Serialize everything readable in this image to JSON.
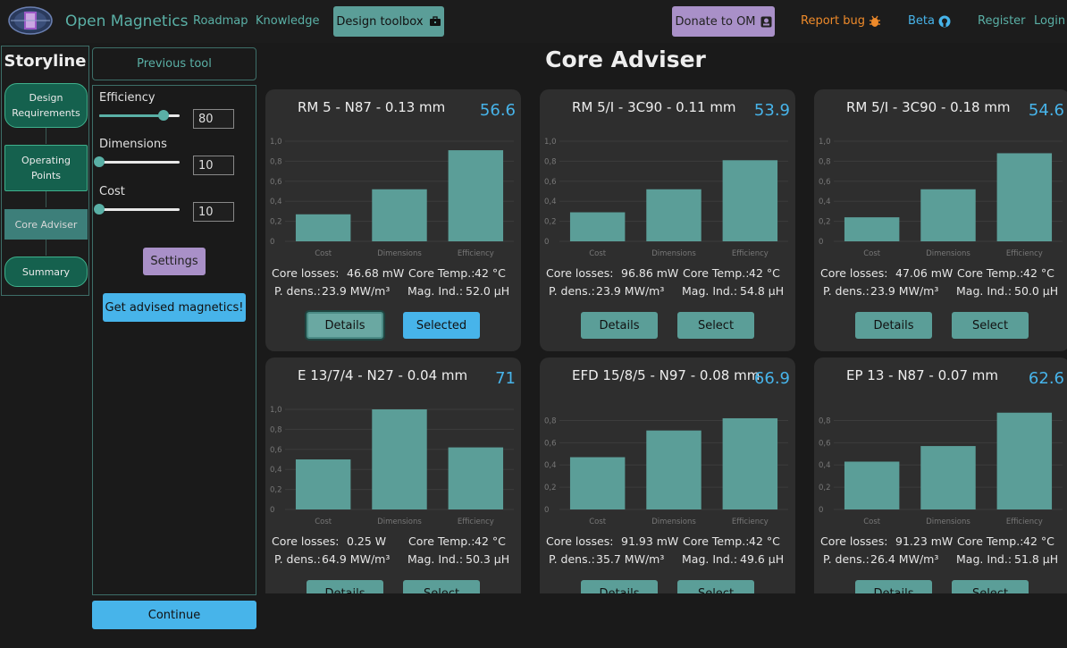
{
  "header": {
    "brand": "Open Magnetics",
    "nav": [
      "Roadmap",
      "Knowledge"
    ],
    "design_toolbox": "Design toolbox",
    "donate": "Donate to OM",
    "report_bug": "Report bug",
    "beta": "Beta",
    "register": "Register",
    "login": "Login"
  },
  "storyline": {
    "title": "Storyline",
    "steps": [
      "Design Requirements",
      "Operating Points",
      "Core Adviser",
      "Summary"
    ],
    "active": "Core Adviser"
  },
  "controls": {
    "previous_tool": "Previous tool",
    "sliders": [
      {
        "label": "Efficiency",
        "value": "80",
        "level": 0.8
      },
      {
        "label": "Dimensions",
        "value": "10",
        "level": 0.0
      },
      {
        "label": "Cost",
        "value": "10",
        "level": 0.0
      }
    ],
    "settings": "Settings",
    "get_advised": "Get advised magnetics!",
    "continue": "Continue"
  },
  "main": {
    "title": "Core Adviser",
    "colors": {
      "bar": "#5b9e98",
      "score": "#47b4ea",
      "card": "#2e2e2e"
    },
    "labels": {
      "core_losses": "Core losses:",
      "core_temp": "Core Temp.:",
      "p_dens": "P. dens.:",
      "mag_ind": "Mag. Ind.:",
      "details": "Details",
      "select": "Select",
      "selected": "Selected"
    },
    "cards": [
      {
        "title": "RM 5 - N87 - 0.13 mm",
        "score": "56.6",
        "core_losses": "46.68 mW",
        "core_temp": "42 °C",
        "p_dens": "23.9 MW/m³",
        "mag_ind": "52.0 µH",
        "state": "selected"
      },
      {
        "title": "RM 5/I - 3C90 - 0.11 mm",
        "score": "53.9",
        "core_losses": "96.86 mW",
        "core_temp": "42 °C",
        "p_dens": "23.9 MW/m³",
        "mag_ind": "54.8 µH",
        "state": "select"
      },
      {
        "title": "RM 5/I - 3C90 - 0.18 mm",
        "score": "54.6",
        "core_losses": "47.06 mW",
        "core_temp": "42 °C",
        "p_dens": "23.9 MW/m³",
        "mag_ind": "50.0 µH",
        "state": "select"
      },
      {
        "title": "E 13/7/4 - N27 - 0.04 mm",
        "score": "71",
        "core_losses": "0.25 W",
        "core_temp": "42 °C",
        "p_dens": "64.9 MW/m³",
        "mag_ind": "50.3 µH",
        "state": "select"
      },
      {
        "title": "EFD 15/8/5 - N97 - 0.08 mm",
        "score": "66.9",
        "core_losses": "91.93 mW",
        "core_temp": "42 °C",
        "p_dens": "35.7 MW/m³",
        "mag_ind": "49.6 µH",
        "state": "select"
      },
      {
        "title": "EP 13 - N87 - 0.07 mm",
        "score": "62.6",
        "core_losses": "91.23 mW",
        "core_temp": "42 °C",
        "p_dens": "26.4 MW/m³",
        "mag_ind": "51.8 µH",
        "state": "select"
      }
    ]
  },
  "chart_data": [
    {
      "type": "bar",
      "categories": [
        "Cost",
        "Dimensions",
        "Efficiency"
      ],
      "values": [
        0.27,
        0.52,
        0.91
      ],
      "ylim": [
        0,
        1.0
      ],
      "yticks": [
        "1,0",
        "0,8",
        "0,6",
        "0,4",
        "0,2",
        "0"
      ]
    },
    {
      "type": "bar",
      "categories": [
        "Cost",
        "Dimensions",
        "Efficiency"
      ],
      "values": [
        0.29,
        0.52,
        0.81
      ],
      "ylim": [
        0,
        1.0
      ],
      "yticks": [
        "1,0",
        "0,8",
        "0,6",
        "0,4",
        "0,2",
        "0"
      ]
    },
    {
      "type": "bar",
      "categories": [
        "Cost",
        "Dimensions",
        "Efficiency"
      ],
      "values": [
        0.24,
        0.52,
        0.88
      ],
      "ylim": [
        0,
        1.0
      ],
      "yticks": [
        "1,0",
        "0,8",
        "0,6",
        "0,4",
        "0,2",
        "0"
      ]
    },
    {
      "type": "bar",
      "categories": [
        "Cost",
        "Dimensions",
        "Efficiency"
      ],
      "values": [
        0.5,
        1.0,
        0.62
      ],
      "ylim": [
        0,
        1.0
      ],
      "yticks": [
        "1,0",
        "0,8",
        "0,6",
        "0,4",
        "0,2",
        "0"
      ]
    },
    {
      "type": "bar",
      "categories": [
        "Cost",
        "Dimensions",
        "Efficiency"
      ],
      "values": [
        0.47,
        0.71,
        0.82
      ],
      "ylim": [
        0,
        0.9
      ],
      "yticks": [
        "0,8",
        "0,6",
        "0,4",
        "0,2",
        "0"
      ]
    },
    {
      "type": "bar",
      "categories": [
        "Cost",
        "Dimensions",
        "Efficiency"
      ],
      "values": [
        0.43,
        0.57,
        0.87
      ],
      "ylim": [
        0,
        0.9
      ],
      "yticks": [
        "0,8",
        "0,6",
        "0,4",
        "0,2",
        "0"
      ]
    }
  ]
}
